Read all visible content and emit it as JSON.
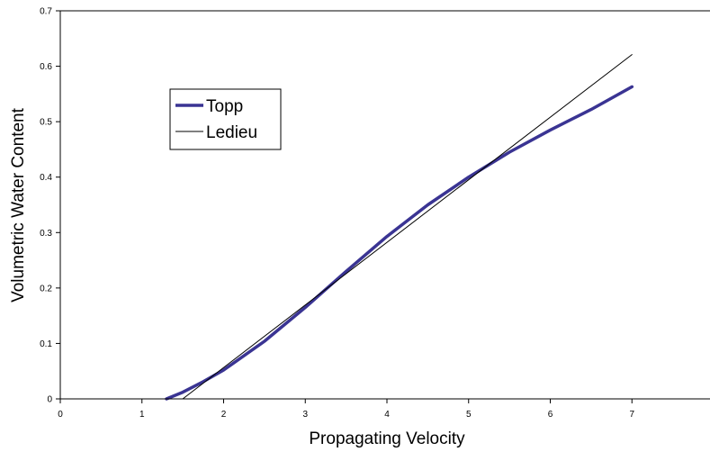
{
  "chart_data": {
    "type": "line",
    "title": "",
    "xlabel": "Propagating Velocity",
    "ylabel": "Volumetric Water Content",
    "xlim": [
      0,
      8
    ],
    "ylim": [
      0,
      0.7
    ],
    "x_ticks": [
      "0",
      "1",
      "2",
      "3",
      "4",
      "5",
      "6",
      "7"
    ],
    "y_ticks": [
      "0",
      "0.1",
      "0.2",
      "0.3",
      "0.4",
      "0.5",
      "0.6",
      "0.7"
    ],
    "grid": false,
    "legend_position": "top-left",
    "series": [
      {
        "name": "Topp",
        "color": "#3a3493",
        "x": [
          1.3,
          1.5,
          1.75,
          2.0,
          2.5,
          3.0,
          3.5,
          4.0,
          4.5,
          5.0,
          5.5,
          6.0,
          6.5,
          7.0
        ],
        "y": [
          0.0,
          0.012,
          0.031,
          0.052,
          0.104,
          0.165,
          0.23,
          0.293,
          0.35,
          0.4,
          0.445,
          0.485,
          0.522,
          0.563
        ]
      },
      {
        "name": "Ledieu",
        "color": "#000000",
        "x": [
          1.5,
          7.0
        ],
        "y": [
          0.0,
          0.621
        ]
      }
    ]
  }
}
